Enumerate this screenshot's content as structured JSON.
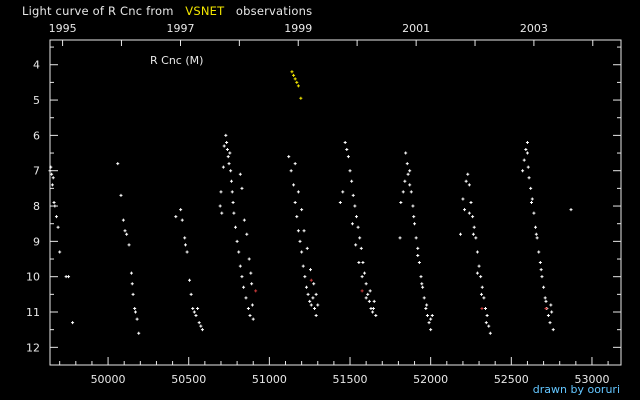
{
  "title": {
    "prefix": "Light curve of R Cnc from",
    "highlight": "VSNET",
    "suffix": "observations"
  },
  "credit": "drawn by ooruri",
  "colors": {
    "background": "#000000",
    "axis": "#e8e8e8",
    "visual": "#ffffff",
    "highlight": "#f2e600",
    "red": "#c83a3a",
    "credit": "#63c6ff"
  },
  "chart_data": {
    "type": "scatter",
    "label": "R Cnc (M)",
    "x_range": [
      49640,
      53180
    ],
    "y_range": [
      12.5,
      3.3
    ],
    "x_ticks": [
      "50000",
      "50500",
      "51000",
      "51500",
      "52000",
      "52500",
      "53000"
    ],
    "year_ticks": [
      "1995",
      "1997",
      "1999",
      "2001",
      "2003"
    ],
    "y_ticks": [
      "4",
      "5",
      "6",
      "7",
      "8",
      "9",
      "10",
      "11",
      "12"
    ],
    "series": [
      {
        "color": "#ffffff",
        "points": [
          [
            49640,
            7.0
          ],
          [
            49645,
            6.9
          ],
          [
            49650,
            7.1
          ],
          [
            49655,
            7.4
          ],
          [
            49660,
            7.2
          ],
          [
            49665,
            7.9
          ],
          [
            49670,
            8.0
          ],
          [
            49680,
            8.3
          ],
          [
            49690,
            8.6
          ],
          [
            49700,
            9.3
          ],
          [
            49740,
            10.0
          ],
          [
            49755,
            10.0
          ],
          [
            49780,
            11.3
          ],
          [
            50060,
            6.8
          ],
          [
            50080,
            7.7
          ],
          [
            50095,
            8.4
          ],
          [
            50105,
            8.7
          ],
          [
            50115,
            8.8
          ],
          [
            50130,
            9.1
          ],
          [
            50145,
            9.9
          ],
          [
            50150,
            10.2
          ],
          [
            50155,
            10.5
          ],
          [
            50165,
            10.9
          ],
          [
            50170,
            11.0
          ],
          [
            50180,
            11.2
          ],
          [
            50190,
            11.6
          ],
          [
            50420,
            8.3
          ],
          [
            50450,
            8.1
          ],
          [
            50460,
            8.4
          ],
          [
            50475,
            8.9
          ],
          [
            50480,
            9.1
          ],
          [
            50490,
            9.3
          ],
          [
            50505,
            10.1
          ],
          [
            50515,
            10.5
          ],
          [
            50525,
            10.9
          ],
          [
            50535,
            11.0
          ],
          [
            50545,
            11.1
          ],
          [
            50555,
            10.9
          ],
          [
            50565,
            11.3
          ],
          [
            50575,
            11.4
          ],
          [
            50585,
            11.5
          ],
          [
            50695,
            8.0
          ],
          [
            50700,
            7.6
          ],
          [
            50705,
            8.2
          ],
          [
            50715,
            6.9
          ],
          [
            50720,
            6.3
          ],
          [
            50730,
            6.0
          ],
          [
            50735,
            6.2
          ],
          [
            50740,
            6.4
          ],
          [
            50745,
            6.6
          ],
          [
            50750,
            6.8
          ],
          [
            50755,
            6.5
          ],
          [
            50760,
            7.0
          ],
          [
            50765,
            7.3
          ],
          [
            50770,
            7.6
          ],
          [
            50775,
            7.9
          ],
          [
            50780,
            8.2
          ],
          [
            50790,
            8.6
          ],
          [
            50800,
            9.0
          ],
          [
            50810,
            9.3
          ],
          [
            50820,
            9.7
          ],
          [
            50830,
            10.0
          ],
          [
            50840,
            10.3
          ],
          [
            50855,
            10.6
          ],
          [
            50870,
            10.9
          ],
          [
            50880,
            11.1
          ],
          [
            50895,
            10.8
          ],
          [
            50900,
            11.2
          ],
          [
            50820,
            7.1
          ],
          [
            50830,
            7.5
          ],
          [
            50845,
            8.4
          ],
          [
            50860,
            8.8
          ],
          [
            50875,
            9.5
          ],
          [
            50885,
            9.9
          ],
          [
            50890,
            10.2
          ],
          [
            51120,
            6.6
          ],
          [
            51135,
            7.0
          ],
          [
            51150,
            7.4
          ],
          [
            51160,
            7.9
          ],
          [
            51170,
            8.3
          ],
          [
            51180,
            8.7
          ],
          [
            51190,
            9.0
          ],
          [
            51200,
            9.3
          ],
          [
            51210,
            9.7
          ],
          [
            51220,
            10.0
          ],
          [
            51230,
            10.3
          ],
          [
            51240,
            10.5
          ],
          [
            51250,
            10.7
          ],
          [
            51260,
            10.8
          ],
          [
            51270,
            10.6
          ],
          [
            51280,
            10.9
          ],
          [
            51290,
            11.1
          ],
          [
            51300,
            10.8
          ],
          [
            51160,
            6.8
          ],
          [
            51180,
            7.6
          ],
          [
            51200,
            8.1
          ],
          [
            51215,
            8.7
          ],
          [
            51235,
            9.2
          ],
          [
            51255,
            9.8
          ],
          [
            51275,
            10.2
          ],
          [
            51290,
            10.5
          ],
          [
            51440,
            7.9
          ],
          [
            51455,
            7.6
          ],
          [
            51470,
            6.2
          ],
          [
            51480,
            6.4
          ],
          [
            51490,
            6.6
          ],
          [
            51500,
            7.0
          ],
          [
            51510,
            7.3
          ],
          [
            51520,
            7.7
          ],
          [
            51530,
            8.0
          ],
          [
            51540,
            8.3
          ],
          [
            51550,
            8.6
          ],
          [
            51560,
            8.9
          ],
          [
            51570,
            9.2
          ],
          [
            51580,
            9.6
          ],
          [
            51590,
            9.9
          ],
          [
            51600,
            10.2
          ],
          [
            51610,
            10.5
          ],
          [
            51620,
            10.7
          ],
          [
            51630,
            10.9
          ],
          [
            51640,
            11.0
          ],
          [
            51650,
            10.7
          ],
          [
            51660,
            11.1
          ],
          [
            51515,
            8.5
          ],
          [
            51535,
            9.1
          ],
          [
            51555,
            9.6
          ],
          [
            51575,
            10.0
          ],
          [
            51600,
            10.6
          ],
          [
            51625,
            10.4
          ],
          [
            51645,
            10.9
          ],
          [
            51810,
            8.9
          ],
          [
            51815,
            7.9
          ],
          [
            51830,
            7.6
          ],
          [
            51840,
            7.3
          ],
          [
            51845,
            6.5
          ],
          [
            51855,
            6.8
          ],
          [
            51860,
            7.1
          ],
          [
            51870,
            7.4
          ],
          [
            51880,
            7.6
          ],
          [
            51890,
            8.0
          ],
          [
            51900,
            8.5
          ],
          [
            51910,
            8.9
          ],
          [
            51920,
            9.2
          ],
          [
            51930,
            9.6
          ],
          [
            51940,
            10.0
          ],
          [
            51950,
            10.3
          ],
          [
            51960,
            10.6
          ],
          [
            51970,
            10.9
          ],
          [
            51980,
            11.1
          ],
          [
            51990,
            11.3
          ],
          [
            52000,
            11.2
          ],
          [
            52010,
            11.1
          ],
          [
            51870,
            7.0
          ],
          [
            51895,
            8.3
          ],
          [
            51920,
            9.4
          ],
          [
            51945,
            10.2
          ],
          [
            51975,
            10.8
          ],
          [
            52000,
            11.5
          ],
          [
            52185,
            8.8
          ],
          [
            52200,
            7.8
          ],
          [
            52210,
            8.1
          ],
          [
            52220,
            7.3
          ],
          [
            52230,
            7.1
          ],
          [
            52240,
            7.4
          ],
          [
            52250,
            7.9
          ],
          [
            52260,
            8.3
          ],
          [
            52270,
            8.6
          ],
          [
            52280,
            8.9
          ],
          [
            52290,
            9.3
          ],
          [
            52300,
            9.7
          ],
          [
            52310,
            10.0
          ],
          [
            52320,
            10.3
          ],
          [
            52330,
            10.6
          ],
          [
            52340,
            10.9
          ],
          [
            52350,
            11.1
          ],
          [
            52360,
            11.4
          ],
          [
            52370,
            11.6
          ],
          [
            52240,
            8.2
          ],
          [
            52265,
            8.8
          ],
          [
            52290,
            9.9
          ],
          [
            52315,
            10.5
          ],
          [
            52345,
            11.3
          ],
          [
            52570,
            7.0
          ],
          [
            52580,
            6.7
          ],
          [
            52590,
            6.4
          ],
          [
            52600,
            6.2
          ],
          [
            52605,
            6.9
          ],
          [
            52610,
            7.2
          ],
          [
            52620,
            7.5
          ],
          [
            52630,
            7.8
          ],
          [
            52640,
            8.2
          ],
          [
            52650,
            8.6
          ],
          [
            52660,
            8.9
          ],
          [
            52670,
            9.3
          ],
          [
            52680,
            9.6
          ],
          [
            52690,
            10.0
          ],
          [
            52700,
            10.3
          ],
          [
            52710,
            10.6
          ],
          [
            52720,
            10.9
          ],
          [
            52730,
            11.1
          ],
          [
            52740,
            11.3
          ],
          [
            52750,
            11.0
          ],
          [
            52760,
            11.5
          ],
          [
            52600,
            6.5
          ],
          [
            52625,
            7.9
          ],
          [
            52655,
            8.8
          ],
          [
            52685,
            9.8
          ],
          [
            52715,
            10.7
          ],
          [
            52745,
            10.8
          ],
          [
            52870,
            8.1
          ]
        ]
      },
      {
        "color": "#f2e600",
        "points": [
          [
            51140,
            4.2
          ],
          [
            51150,
            4.3
          ],
          [
            51160,
            4.4
          ],
          [
            51170,
            4.5
          ],
          [
            51180,
            4.6
          ],
          [
            51195,
            4.95
          ]
        ]
      },
      {
        "color": "#c83a3a",
        "points": [
          [
            50915,
            10.4
          ],
          [
            51260,
            10.1
          ],
          [
            51575,
            10.4
          ],
          [
            52318,
            10.9
          ],
          [
            52715,
            10.9
          ]
        ]
      }
    ]
  }
}
